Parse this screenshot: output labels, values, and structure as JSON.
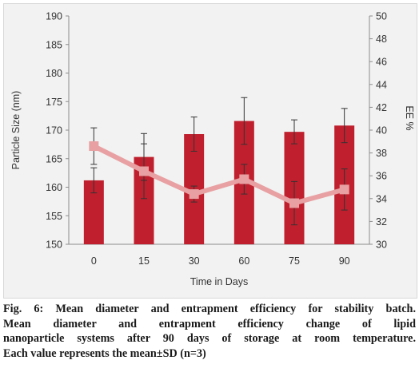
{
  "chart_data": {
    "type": "bar",
    "categories": [
      "0",
      "15",
      "30",
      "60",
      "75",
      "90"
    ],
    "xlabel": "Time in Days",
    "ylabel": "Particle Size (nm)",
    "y2label": "EE %",
    "ylim": [
      150,
      190
    ],
    "y2lim": [
      30,
      50
    ],
    "yticks": [
      "150",
      "155",
      "160",
      "165",
      "170",
      "175",
      "180",
      "185",
      "190"
    ],
    "y2ticks": [
      "30",
      "32",
      "34",
      "36",
      "38",
      "40",
      "42",
      "44",
      "46",
      "48",
      "50"
    ],
    "series": [
      {
        "kind": "bar",
        "axis": "left",
        "color": "#c0202e",
        "values": [
          161.2,
          165.3,
          169.3,
          171.6,
          169.7,
          170.8
        ],
        "errors": [
          2.2,
          4.1,
          3.0,
          4.1,
          2.1,
          3.0
        ]
      },
      {
        "kind": "line",
        "axis": "right",
        "color": "#e8a0a2",
        "values": [
          38.6,
          36.4,
          34.4,
          35.7,
          33.6,
          34.8
        ],
        "errors": [
          1.6,
          2.4,
          0.7,
          1.3,
          1.9,
          1.8
        ]
      }
    ],
    "grid": false
  },
  "caption": {
    "fig_label": "Fig. 6:",
    "title": "Mean diameter and entrapment efficiency for stability batch.",
    "lines": [
      "Mean diameter and entrapment efficiency change of lipid",
      "nanoparticle systems after 90 days of storage at room temperature.",
      "Each value represents the mean±SD (n=3)"
    ]
  }
}
